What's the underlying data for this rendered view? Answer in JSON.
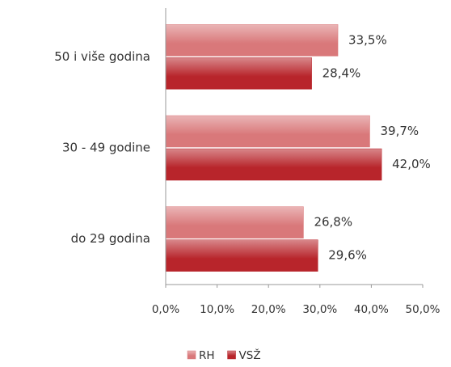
{
  "chart_data": {
    "type": "hbar",
    "categories": [
      "50 i više godina",
      "30 -  49 godine",
      "do 29 godina"
    ],
    "series": [
      {
        "name": "RH",
        "color": "#d9787a",
        "values": [
          33.5,
          39.7,
          26.8
        ],
        "value_labels": [
          "33,5%",
          "39,7%",
          "26,8%"
        ]
      },
      {
        "name": "VSŽ",
        "color": "#b8252b",
        "values": [
          28.4,
          42.0,
          29.6
        ],
        "value_labels": [
          "28,4%",
          "42,0%",
          "29,6%"
        ]
      }
    ],
    "xlim": [
      0,
      50
    ],
    "xticks": [
      {
        "value": 0,
        "label": "0,0%"
      },
      {
        "value": 10,
        "label": "10,0%"
      },
      {
        "value": 20,
        "label": "20,0%"
      },
      {
        "value": 30,
        "label": "30,0%"
      },
      {
        "value": 40,
        "label": "40,0%"
      },
      {
        "value": 50,
        "label": "50,0%"
      }
    ],
    "legend": "bottom"
  }
}
